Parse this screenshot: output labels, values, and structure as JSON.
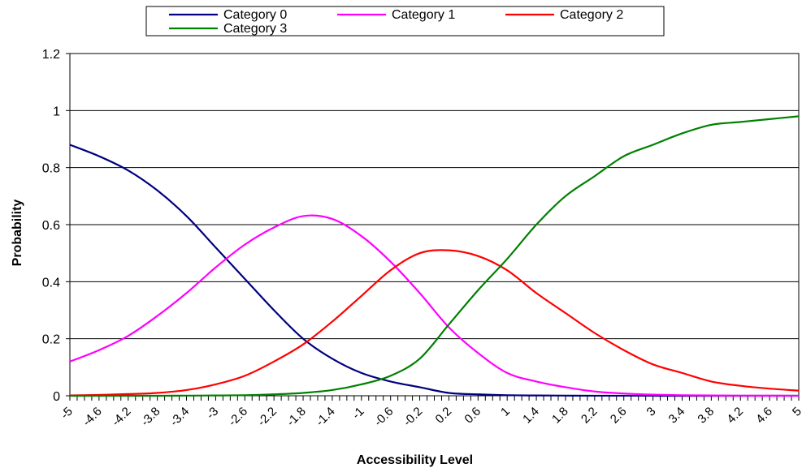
{
  "chart_data": {
    "type": "line",
    "xlabel": "Accessibility Level",
    "ylabel": "Probability",
    "xlim": [
      -5,
      5
    ],
    "ylim": [
      0,
      1.2
    ],
    "y_ticks": [
      "0",
      "0.2",
      "0.4",
      "0.6",
      "0.8",
      "1",
      "1.2"
    ],
    "x_tick_labels": [
      "-5",
      "-4.6",
      "-4.2",
      "-3.8",
      "-3.4",
      "-3",
      "-2.6",
      "-2.2",
      "-1.8",
      "-1.4",
      "-1",
      "-0.6",
      "-0.2",
      "0.2",
      "0.6",
      "1",
      "1.4",
      "1.8",
      "2.2",
      "2.6",
      "3",
      "3.4",
      "3.8",
      "4.2",
      "4.6",
      "5"
    ],
    "grid": "horizontal major gridlines",
    "legend_position": "top",
    "x": [
      -5,
      -4.6,
      -4.2,
      -3.8,
      -3.4,
      -3,
      -2.6,
      -2.2,
      -1.8,
      -1.4,
      -1,
      -0.6,
      -0.2,
      0.2,
      0.6,
      1,
      1.4,
      1.8,
      2.2,
      2.6,
      3,
      3.4,
      3.8,
      4.2,
      4.6,
      5
    ],
    "series": [
      {
        "name": "Category 0",
        "color": "#000080",
        "values": [
          0.88,
          0.84,
          0.79,
          0.72,
          0.63,
          0.52,
          0.41,
          0.3,
          0.2,
          0.13,
          0.08,
          0.05,
          0.03,
          0.01,
          0.005,
          0.002,
          0.001,
          0.0005,
          0.0002,
          0.0001,
          0.0001,
          0.0,
          0.0,
          0.0,
          0.0,
          0.0
        ]
      },
      {
        "name": "Category 1",
        "color": "#ff00ff",
        "values": [
          0.12,
          0.16,
          0.21,
          0.28,
          0.36,
          0.45,
          0.53,
          0.59,
          0.63,
          0.62,
          0.56,
          0.47,
          0.36,
          0.24,
          0.15,
          0.08,
          0.05,
          0.03,
          0.015,
          0.008,
          0.004,
          0.002,
          0.001,
          0.0005,
          0.0003,
          0.0002
        ]
      },
      {
        "name": "Category 2",
        "color": "#ff0000",
        "values": [
          0.001,
          0.003,
          0.006,
          0.01,
          0.02,
          0.04,
          0.07,
          0.12,
          0.18,
          0.26,
          0.35,
          0.44,
          0.5,
          0.51,
          0.49,
          0.44,
          0.36,
          0.29,
          0.22,
          0.16,
          0.11,
          0.08,
          0.05,
          0.035,
          0.025,
          0.018
        ]
      },
      {
        "name": "Category 3",
        "color": "#008000",
        "values": [
          0.0,
          0.0,
          0.0,
          0.0,
          0.0005,
          0.001,
          0.002,
          0.005,
          0.01,
          0.02,
          0.04,
          0.07,
          0.13,
          0.25,
          0.37,
          0.48,
          0.6,
          0.7,
          0.77,
          0.84,
          0.88,
          0.92,
          0.95,
          0.96,
          0.97,
          0.98
        ]
      }
    ]
  }
}
